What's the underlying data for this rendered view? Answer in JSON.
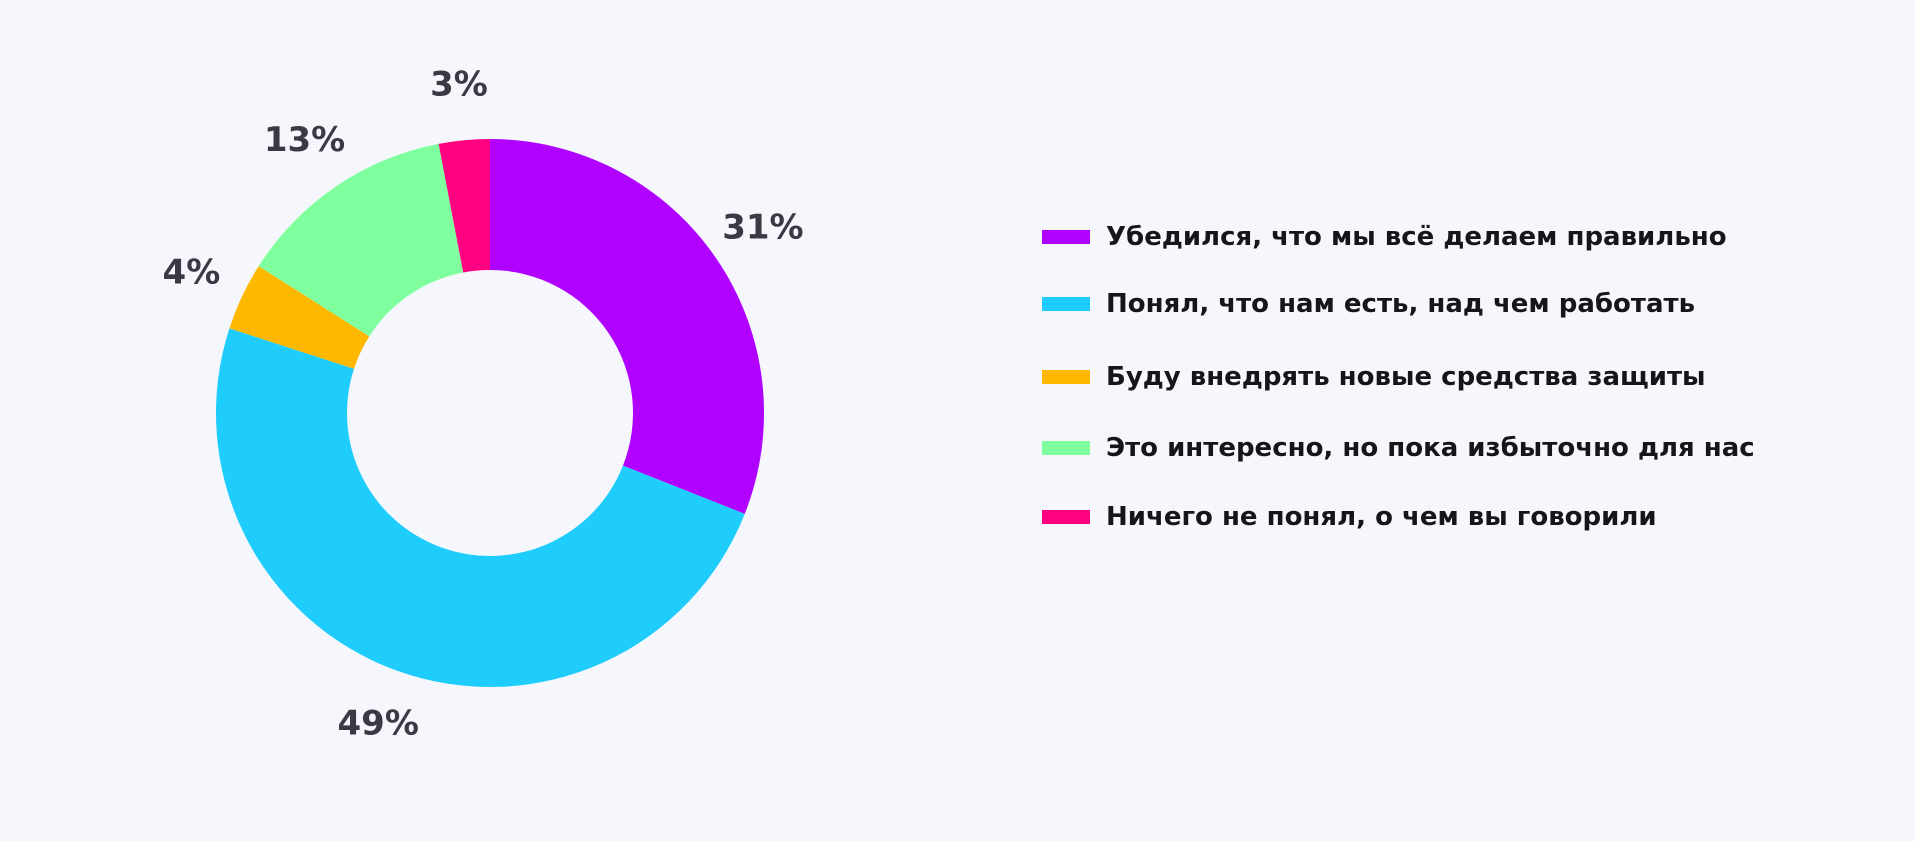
{
  "chart_data": {
    "type": "pie",
    "donut": true,
    "slices": [
      {
        "label": "Убедился, что мы всё делаем правильно",
        "value": 31,
        "display": "31%",
        "color": "#b000ff"
      },
      {
        "label": "Понял, что нам есть, над чем работать",
        "value": 49,
        "display": "49%",
        "color": "#1ecdfc"
      },
      {
        "label": "Буду внедрять новые средства защиты",
        "value": 4,
        "display": "4%",
        "color": "#ffb800"
      },
      {
        "label": "Это интересно, но пока избыточно для нас",
        "value": 13,
        "display": "13%",
        "color": "#80ff9e"
      },
      {
        "label": "Ничего не понял, о чем вы говорили",
        "value": 3,
        "display": "3%",
        "color": "#ff0080"
      }
    ],
    "legend_position": "right",
    "start": "top",
    "direction": "clockwise"
  }
}
